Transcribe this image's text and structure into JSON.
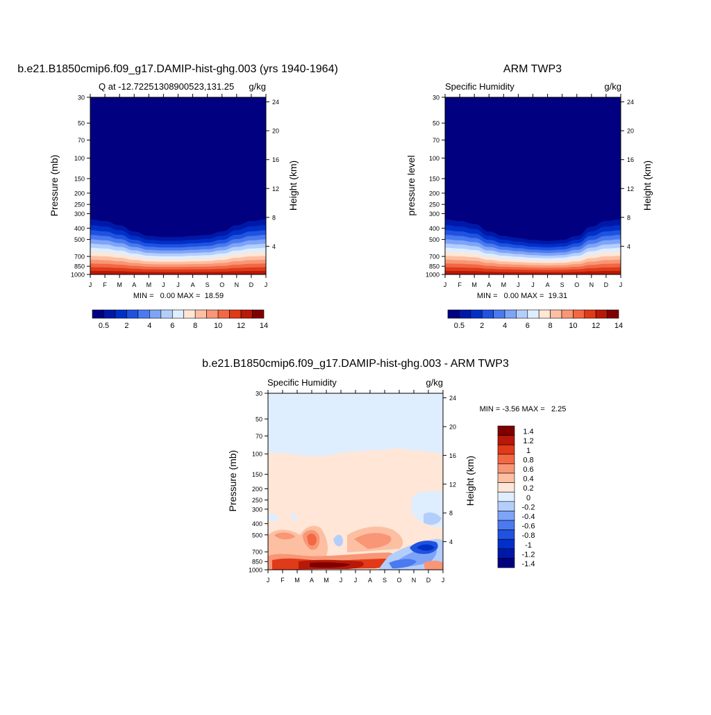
{
  "panels": [
    {
      "title": "b.e21.B1850cmip6.f09_g17.DAMIP-hist-ghg.003 (yrs 1940-1964)",
      "subtitle_left": "Q at -12.72251308900523,131.25",
      "subtitle_right": "g/kg",
      "ylabel": "Pressure (mb)",
      "ylabel_right": "Height (km)",
      "minmax": "MIN =   0.00 MAX =  18.59",
      "pressure_ticks": [
        "30",
        "50",
        "70",
        "100",
        "150",
        "200",
        "250",
        "300",
        "400",
        "500",
        "700",
        "850",
        "1000"
      ],
      "height_ticks": [
        "24",
        "20",
        "16",
        "12",
        "8",
        "4"
      ],
      "months": [
        "J",
        "F",
        "M",
        "A",
        "M",
        "J",
        "J",
        "A",
        "S",
        "O",
        "N",
        "D",
        "J"
      ],
      "colorbar_labels": [
        "0.5",
        "2",
        "4",
        "6",
        "8",
        "10",
        "12",
        "14"
      ]
    },
    {
      "title": "ARM TWP3",
      "subtitle_left": "Specific Humidity",
      "subtitle_right": "g/kg",
      "ylabel": "pressure level",
      "ylabel_right": "Height (km)",
      "minmax": "MIN =   0.00 MAX =  19.31",
      "pressure_ticks": [
        "30",
        "50",
        "70",
        "100",
        "150",
        "200",
        "250",
        "300",
        "400",
        "500",
        "700",
        "850",
        "1000"
      ],
      "height_ticks": [
        "24",
        "20",
        "16",
        "12",
        "8",
        "4"
      ],
      "months": [
        "J",
        "F",
        "M",
        "A",
        "M",
        "J",
        "J",
        "A",
        "S",
        "O",
        "N",
        "D",
        "J"
      ],
      "colorbar_labels": [
        "0.5",
        "2",
        "4",
        "6",
        "8",
        "10",
        "12",
        "14"
      ]
    },
    {
      "title": "b.e21.B1850cmip6.f09_g17.DAMIP-hist-ghg.003 - ARM TWP3",
      "subtitle_left": "Specific Humidity",
      "subtitle_right": "g/kg",
      "ylabel": "Pressure (mb)",
      "ylabel_right": "Height (km)",
      "minmax": "MIN = -3.56 MAX =   2.25",
      "pressure_ticks": [
        "30",
        "50",
        "70",
        "100",
        "150",
        "200",
        "250",
        "300",
        "400",
        "500",
        "700",
        "850",
        "1000"
      ],
      "height_ticks": [
        "24",
        "20",
        "16",
        "12",
        "8",
        "4"
      ],
      "months": [
        "J",
        "F",
        "M",
        "A",
        "M",
        "J",
        "J",
        "A",
        "S",
        "O",
        "N",
        "D",
        "J"
      ],
      "colorbar_labels": [
        "1.4",
        "1.2",
        "1",
        "0.8",
        "0.6",
        "0.4",
        "0.2",
        "0",
        "-0.2",
        "-0.4",
        "-0.6",
        "-0.8",
        "-1",
        "-1.2",
        "-1.4"
      ]
    }
  ],
  "colors": {
    "abs_scale": [
      "#000080",
      "#0018a8",
      "#0030c8",
      "#2052e0",
      "#4a7af0",
      "#7ea4f8",
      "#b4cefc",
      "#dfeeff",
      "#ffe6d6",
      "#fcbfa2",
      "#f89676",
      "#f26844",
      "#e03a18",
      "#b81808",
      "#800000"
    ],
    "diff_scale": [
      "#800000",
      "#b81808",
      "#e03a18",
      "#f26844",
      "#f89676",
      "#fcbfa2",
      "#ffe6d6",
      "#dfeeff",
      "#b4cefc",
      "#7ea4f8",
      "#4a7af0",
      "#2052e0",
      "#0030c8",
      "#0018a8",
      "#000080"
    ]
  },
  "chart_data": [
    {
      "type": "contour",
      "title": "b.e21.B1850cmip6.f09_g17.DAMIP-hist-ghg.003 (yrs 1940-1964)",
      "variable": "Q at -12.72251308900523,131.25",
      "units": "g/kg",
      "x": [
        "J",
        "F",
        "M",
        "A",
        "M",
        "J",
        "J",
        "A",
        "S",
        "O",
        "N",
        "D",
        "J"
      ],
      "y_pressure_mb": [
        30,
        50,
        70,
        100,
        150,
        200,
        250,
        300,
        400,
        500,
        700,
        850,
        1000
      ],
      "min": 0.0,
      "max": 18.59,
      "levels": [
        0.5,
        1,
        2,
        3,
        4,
        5,
        6,
        7,
        8,
        9,
        10,
        11,
        12,
        13,
        14
      ],
      "moist_top_pressure_mb": [
        290,
        300,
        330,
        380,
        420,
        430,
        430,
        420,
        410,
        380,
        330,
        300,
        290
      ]
    },
    {
      "type": "contour",
      "title": "ARM TWP3",
      "variable": "Specific Humidity",
      "units": "g/kg",
      "x": [
        "J",
        "F",
        "M",
        "A",
        "M",
        "J",
        "J",
        "A",
        "S",
        "O",
        "N",
        "D",
        "J"
      ],
      "y_pressure_mb": [
        30,
        50,
        70,
        100,
        150,
        200,
        250,
        300,
        400,
        500,
        700,
        850,
        1000
      ],
      "min": 0.0,
      "max": 19.31,
      "levels": [
        0.5,
        1,
        2,
        3,
        4,
        5,
        6,
        7,
        8,
        9,
        10,
        11,
        12,
        13,
        14
      ],
      "moist_top_pressure_mb": [
        290,
        300,
        320,
        380,
        420,
        440,
        460,
        470,
        460,
        420,
        340,
        300,
        290
      ]
    },
    {
      "type": "contour",
      "title": "b.e21.B1850cmip6.f09_g17.DAMIP-hist-ghg.003 - ARM TWP3",
      "variable": "Specific Humidity",
      "units": "g/kg",
      "x": [
        "J",
        "F",
        "M",
        "A",
        "M",
        "J",
        "J",
        "A",
        "S",
        "O",
        "N",
        "D",
        "J"
      ],
      "y_pressure_mb": [
        30,
        50,
        70,
        100,
        150,
        200,
        250,
        300,
        400,
        500,
        700,
        850,
        1000
      ],
      "min": -3.56,
      "max": 2.25,
      "levels": [
        -1.4,
        -1.2,
        -1,
        -0.8,
        -0.6,
        -0.4,
        -0.2,
        0,
        0.2,
        0.4,
        0.6,
        0.8,
        1,
        1.2,
        1.4
      ]
    }
  ]
}
